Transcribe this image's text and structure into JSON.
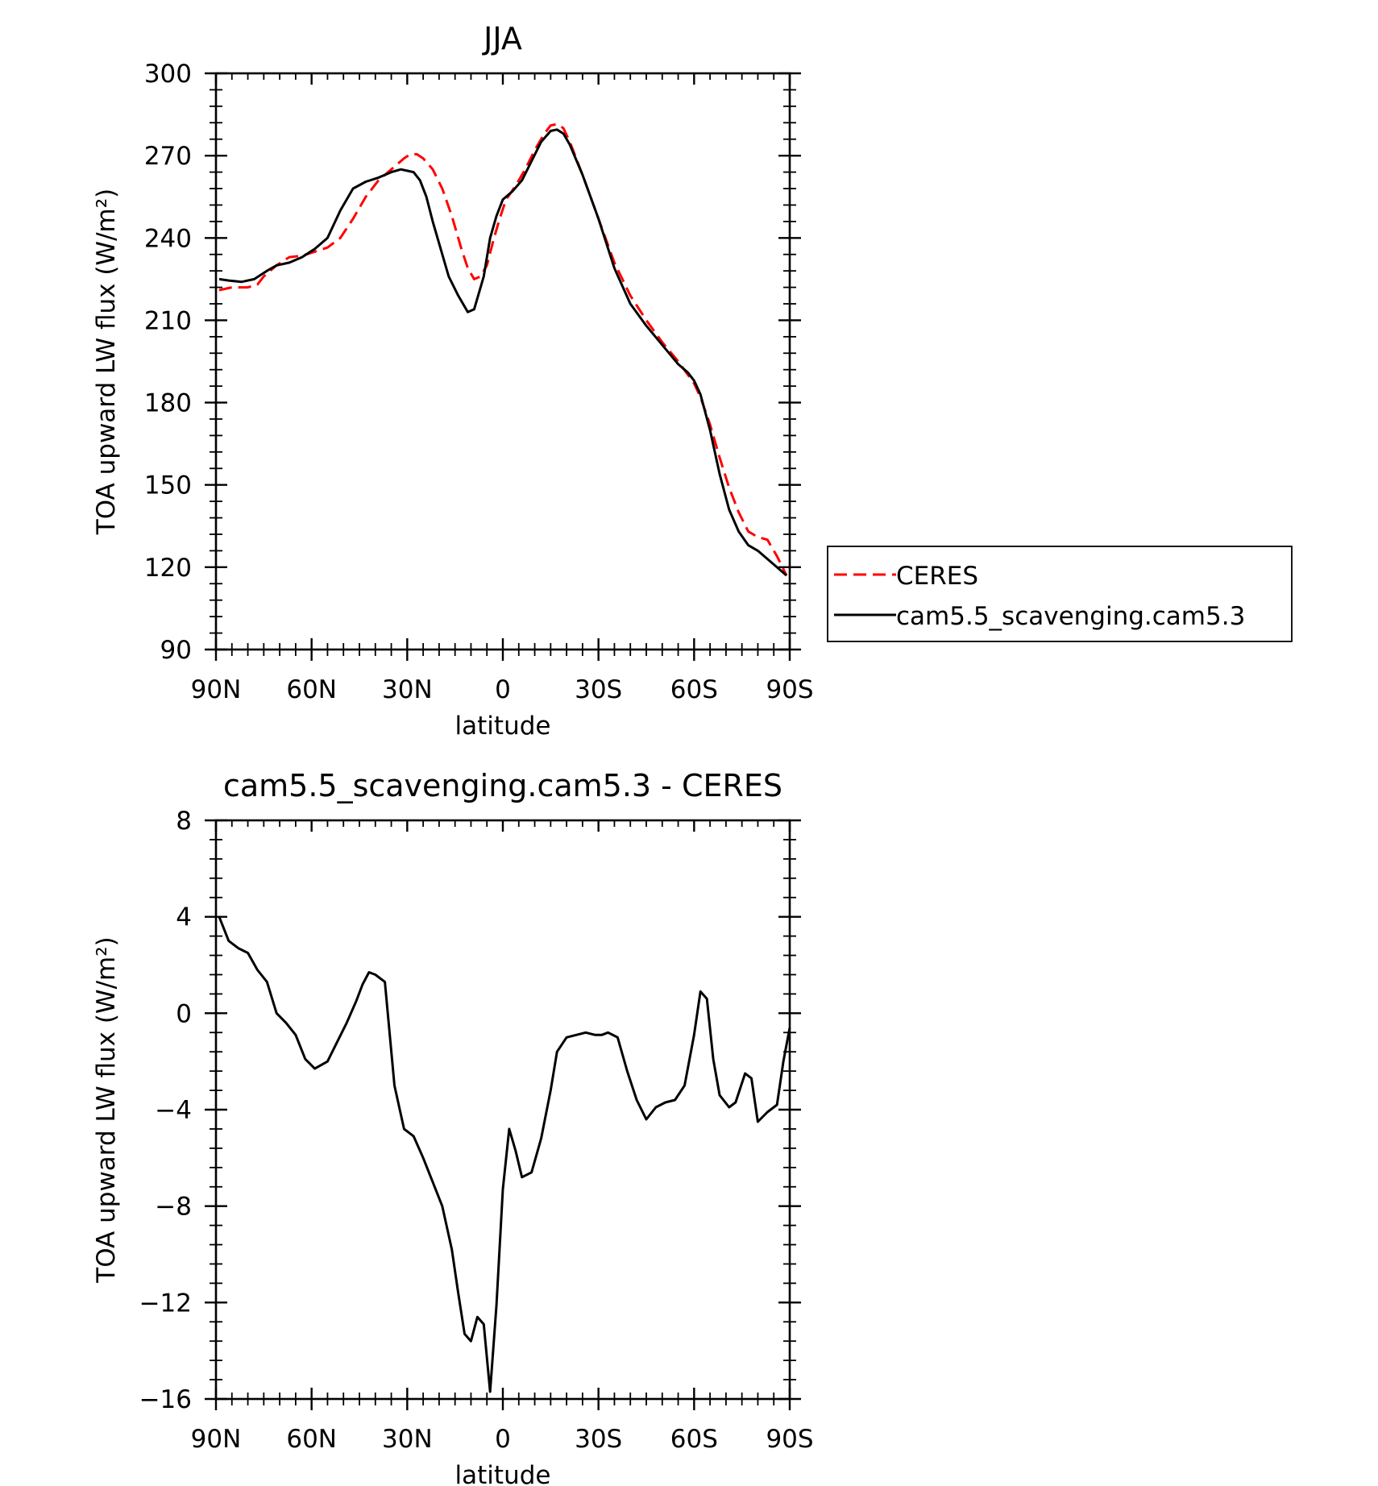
{
  "chart_data": [
    {
      "type": "line",
      "title": "JJA",
      "xlabel": "latitude",
      "ylabel": "TOA upward LW flux (W/m²)",
      "xlim": [
        90,
        -90
      ],
      "ylim": [
        90,
        300
      ],
      "x_ticks": [
        90,
        60,
        30,
        0,
        -30,
        -60,
        -90
      ],
      "x_tick_labels": [
        "90N",
        "60N",
        "30N",
        "0",
        "30S",
        "60S",
        "90S"
      ],
      "y_ticks": [
        90,
        120,
        150,
        180,
        210,
        240,
        270,
        300
      ],
      "y_tick_labels": [
        "90",
        "120",
        "150",
        "180",
        "210",
        "240",
        "270",
        "300"
      ],
      "grid": false,
      "legend": "right",
      "series": [
        {
          "name": "CERES",
          "color": "#ff0000",
          "dash": "dashed",
          "x": [
            89,
            85,
            80,
            77,
            75,
            71,
            67,
            63,
            59,
            55,
            51,
            47,
            43,
            39,
            35,
            31,
            29,
            27,
            25,
            22,
            19,
            16,
            13,
            11,
            9,
            7,
            5,
            3,
            1,
            -1,
            -4,
            -7,
            -10,
            -13,
            -15,
            -17,
            -19,
            -21,
            -25,
            -30,
            -35,
            -40,
            -45,
            -50,
            -55,
            -60,
            -62,
            -65,
            -68,
            -71,
            -74,
            -77,
            -80,
            -83,
            -86,
            -89
          ],
          "y": [
            221,
            222,
            222,
            223,
            226,
            230,
            233,
            233.5,
            235,
            236.5,
            240,
            247,
            255,
            261,
            265,
            269,
            270.5,
            270.5,
            269,
            265,
            258,
            248,
            236,
            229,
            225,
            226,
            230,
            239,
            247,
            254,
            259,
            265,
            272,
            278,
            281,
            281.5,
            280,
            275,
            263,
            247,
            231,
            219,
            210,
            202,
            195,
            187,
            182,
            172,
            160,
            149,
            140,
            133,
            131,
            130,
            124,
            117
          ]
        },
        {
          "name": "cam5.5_scavenging.cam5.3",
          "color": "#000000",
          "dash": "solid",
          "x": [
            89,
            86,
            82,
            78,
            74,
            71,
            67,
            63,
            59,
            55,
            51,
            47,
            43,
            39,
            35,
            32,
            30,
            28,
            26,
            24,
            22,
            20,
            17,
            14,
            11,
            9,
            6,
            4,
            2,
            0,
            -3,
            -6,
            -9,
            -12,
            -15,
            -17,
            -19,
            -21,
            -25,
            -30,
            -35,
            -40,
            -45,
            -50,
            -55,
            -58,
            -60,
            -62,
            -65,
            -68,
            -71,
            -74,
            -77,
            -80,
            -83,
            -86,
            -89
          ],
          "y": [
            225,
            224.5,
            224,
            225,
            228,
            230,
            231,
            233,
            236,
            240,
            250,
            258,
            260.5,
            262,
            264,
            265,
            264.5,
            264,
            261,
            255,
            246,
            238,
            226,
            219,
            213,
            214,
            226,
            240,
            248,
            254,
            257,
            261,
            268,
            275,
            279,
            279.5,
            278,
            274,
            263,
            247,
            229,
            216,
            208,
            201,
            194,
            191,
            188,
            183,
            170,
            154,
            141,
            133,
            128,
            126,
            123,
            120,
            117
          ]
        }
      ]
    },
    {
      "type": "line",
      "title": "cam5.5_scavenging.cam5.3 - CERES",
      "xlabel": "latitude",
      "ylabel": "TOA upward LW flux (W/m²)",
      "xlim": [
        90,
        -90
      ],
      "ylim": [
        -16,
        8
      ],
      "x_ticks": [
        90,
        60,
        30,
        0,
        -30,
        -60,
        -90
      ],
      "x_tick_labels": [
        "90N",
        "60N",
        "30N",
        "0",
        "30S",
        "60S",
        "90S"
      ],
      "y_ticks": [
        -16,
        -12,
        -8,
        -4,
        0,
        4,
        8
      ],
      "y_tick_labels": [
        "−16",
        "−12",
        "−8",
        "−4",
        "0",
        "4",
        "8"
      ],
      "grid": false,
      "series": [
        {
          "color": "#000000",
          "dash": "solid",
          "x": [
            89,
            86,
            83,
            80,
            77,
            74,
            71,
            68,
            65,
            62,
            59,
            55,
            52,
            49,
            46,
            44,
            42,
            40,
            37,
            34,
            31,
            28,
            25,
            22,
            19,
            16,
            14,
            12,
            10,
            8,
            6,
            4,
            2,
            0,
            -2,
            -4,
            -6,
            -9,
            -12,
            -15,
            -17,
            -20,
            -23,
            -26,
            -29,
            -31,
            -33,
            -36,
            -39,
            -42,
            -45,
            -48,
            -51,
            -54,
            -57,
            -60,
            -62,
            -64,
            -66,
            -68,
            -71,
            -73,
            -76,
            -78,
            -80,
            -83,
            -86,
            -88,
            -90
          ],
          "y": [
            4,
            3,
            2.7,
            2.5,
            1.8,
            1.3,
            0,
            -0.4,
            -0.9,
            -1.9,
            -2.3,
            -2.0,
            -1.2,
            -0.4,
            0.5,
            1.2,
            1.7,
            1.6,
            1.3,
            -3.0,
            -4.8,
            -5.1,
            -6.0,
            -7.0,
            -8.0,
            -9.8,
            -11.6,
            -13.3,
            -13.6,
            -12.6,
            -12.9,
            -15.7,
            -12.1,
            -7.3,
            -4.8,
            -5.7,
            -6.8,
            -6.6,
            -5.2,
            -3.2,
            -1.6,
            -1.0,
            -0.9,
            -0.8,
            -0.9,
            -0.9,
            -0.8,
            -1.0,
            -2.4,
            -3.6,
            -4.4,
            -3.9,
            -3.7,
            -3.6,
            -3.0,
            -0.9,
            0.9,
            0.6,
            -1.9,
            -3.4,
            -3.9,
            -3.7,
            -2.5,
            -2.7,
            -4.5,
            -4.1,
            -3.8,
            -2.0,
            -0.6
          ]
        }
      ]
    }
  ]
}
